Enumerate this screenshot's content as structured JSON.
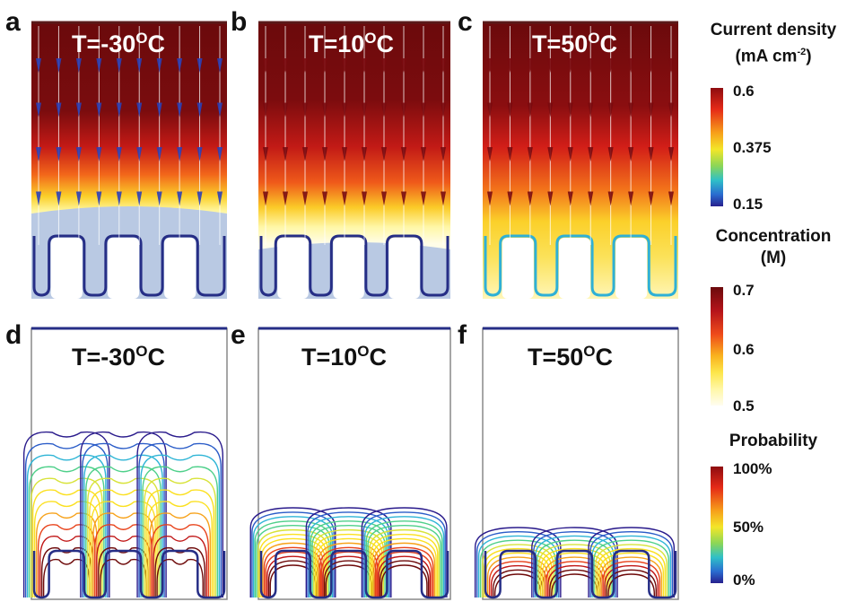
{
  "panels": [
    {
      "id": "a",
      "row": "top",
      "temp": "T=-30",
      "unit": "C",
      "degree": "O"
    },
    {
      "id": "b",
      "row": "top",
      "temp": "T=10",
      "unit": "C",
      "degree": "O"
    },
    {
      "id": "c",
      "row": "top",
      "temp": "T=50",
      "unit": "C",
      "degree": "O"
    },
    {
      "id": "d",
      "row": "bottom",
      "temp": "T=-30",
      "unit": "C",
      "degree": "O"
    },
    {
      "id": "e",
      "row": "bottom",
      "temp": "T=10",
      "unit": "C",
      "degree": "O"
    },
    {
      "id": "f",
      "row": "bottom",
      "temp": "T=50",
      "unit": "C",
      "degree": "O"
    }
  ],
  "legends": {
    "current": {
      "title_line1": "Current density",
      "title_line2_pre": "(mA cm",
      "title_line2_sup": "-2",
      "title_line2_post": ")",
      "max": "0.6",
      "mid": "0.375",
      "min": "0.15"
    },
    "concentration": {
      "title_line1": "Concentration",
      "title_line2": "(M)",
      "max": "0.7",
      "mid": "0.6",
      "min": "0.5"
    },
    "probability": {
      "title_line1": "Probability",
      "max": "100%",
      "mid": "50%",
      "min": "0%"
    }
  },
  "colors": {
    "rainbow": [
      "#2a1b8c",
      "#2a5cc8",
      "#2fb5d6",
      "#4fd08a",
      "#d8e33a",
      "#fbe020",
      "#f7a21a",
      "#e8421a",
      "#c01515",
      "#6e0a0a"
    ],
    "heat": [
      "#fffde8",
      "#fff7a6",
      "#fde64a",
      "#f9b21e",
      "#f0651a",
      "#d6201a",
      "#9e0e12",
      "#6b0a0c"
    ],
    "frozen": "#b9c9e3",
    "outline": "#262e86"
  }
}
